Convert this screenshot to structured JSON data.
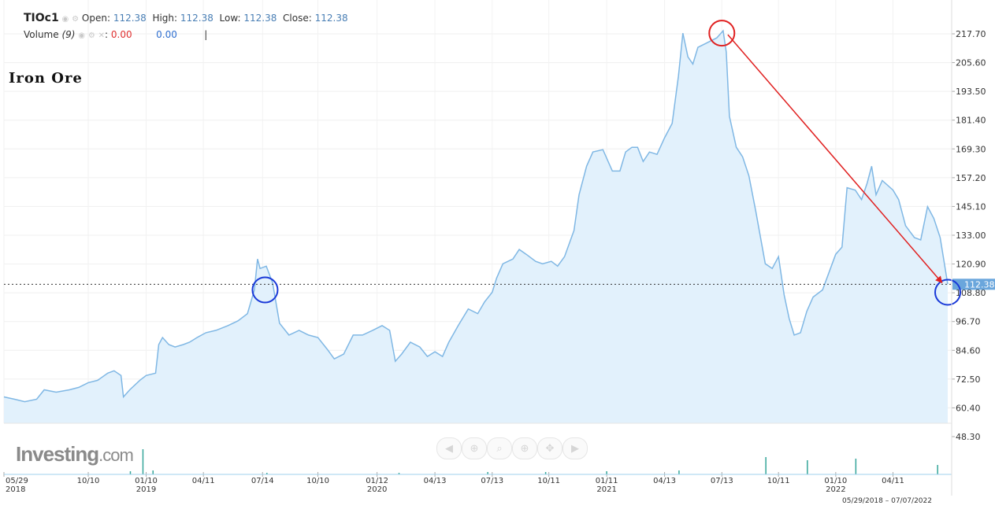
{
  "header": {
    "symbol": "TIOc1",
    "open_label": "Open:",
    "open_value": "112.38",
    "high_label": "High:",
    "high_value": "112.38",
    "low_label": "Low:",
    "low_value": "112.38",
    "close_label": "Close:",
    "close_value": "112.38",
    "volume_label": "Volume",
    "volume_period": "(9)",
    "volume_value": "0.00",
    "volume_value2": "0.00",
    "cursor": "|"
  },
  "annotation_title": "Iron Ore",
  "logo": {
    "text": "Investing",
    "suffix": ".com"
  },
  "date_range": "05/29/2018 – 07/07/2022",
  "price_tag": "112.38",
  "icons": {
    "eye": "eye-icon",
    "gear": "gear-icon",
    "close": "close-icon"
  },
  "controls": [
    "arrow-left-icon",
    "zoom-out-icon",
    "zoom-reset-icon",
    "zoom-in-icon",
    "pan-icon",
    "arrow-right-icon"
  ],
  "colors": {
    "line": "#7fb7e4",
    "fill": "#e2f1fc",
    "arrow": "#e02020",
    "circle_red": "#e02020",
    "circle_blue": "#1a3ad8",
    "volume": "#35a69a",
    "price_tag": "#6aa6dc"
  },
  "chart_data": {
    "type": "area",
    "title": "",
    "xlabel": "",
    "ylabel": "",
    "ylim": [
      48.3,
      229.8
    ],
    "x_range": [
      "2018-05-29",
      "2022-07-07"
    ],
    "y_ticks": [
      "217.70",
      "205.60",
      "193.50",
      "181.40",
      "169.30",
      "157.20",
      "145.10",
      "133.00",
      "120.90",
      "108.80",
      "96.70",
      "84.60",
      "72.50",
      "60.40",
      "48.30"
    ],
    "x_ticks": [
      {
        "date": "2018-05-29",
        "label": "05/29",
        "year": "2018"
      },
      {
        "date": "2018-10-10",
        "label": "10/10",
        "year": ""
      },
      {
        "date": "2019-01-10",
        "label": "01/10",
        "year": "2019"
      },
      {
        "date": "2019-04-11",
        "label": "04/11",
        "year": ""
      },
      {
        "date": "2019-07-14",
        "label": "07/14",
        "year": ""
      },
      {
        "date": "2019-10-10",
        "label": "10/10",
        "year": ""
      },
      {
        "date": "2020-01-12",
        "label": "01/12",
        "year": "2020"
      },
      {
        "date": "2020-04-13",
        "label": "04/13",
        "year": ""
      },
      {
        "date": "2020-07-13",
        "label": "07/13",
        "year": ""
      },
      {
        "date": "2020-10-11",
        "label": "10/11",
        "year": ""
      },
      {
        "date": "2021-01-11",
        "label": "01/11",
        "year": "2021"
      },
      {
        "date": "2021-04-13",
        "label": "04/13",
        "year": ""
      },
      {
        "date": "2021-07-13",
        "label": "07/13",
        "year": ""
      },
      {
        "date": "2021-10-11",
        "label": "10/11",
        "year": ""
      },
      {
        "date": "2022-01-10",
        "label": "01/10",
        "year": "2022"
      },
      {
        "date": "2022-04-11",
        "label": "04/11",
        "year": ""
      }
    ],
    "last_value": 112.38,
    "series": [
      {
        "points": [
          [
            "2018-05-29",
            65
          ],
          [
            "2018-06-15",
            64
          ],
          [
            "2018-07-01",
            63
          ],
          [
            "2018-07-20",
            64
          ],
          [
            "2018-08-01",
            68
          ],
          [
            "2018-08-20",
            67
          ],
          [
            "2018-09-10",
            68
          ],
          [
            "2018-09-25",
            69
          ],
          [
            "2018-10-10",
            71
          ],
          [
            "2018-10-25",
            72
          ],
          [
            "2018-11-10",
            75
          ],
          [
            "2018-11-20",
            76
          ],
          [
            "2018-12-01",
            74
          ],
          [
            "2018-12-05",
            65
          ],
          [
            "2018-12-15",
            68
          ],
          [
            "2018-12-31",
            72
          ],
          [
            "2019-01-10",
            74
          ],
          [
            "2019-01-25",
            75
          ],
          [
            "2019-01-30",
            87
          ],
          [
            "2019-02-05",
            90
          ],
          [
            "2019-02-15",
            87
          ],
          [
            "2019-02-25",
            86
          ],
          [
            "2019-03-10",
            87
          ],
          [
            "2019-03-20",
            88
          ],
          [
            "2019-04-01",
            90
          ],
          [
            "2019-04-15",
            92
          ],
          [
            "2019-05-01",
            93
          ],
          [
            "2019-05-20",
            95
          ],
          [
            "2019-06-05",
            97
          ],
          [
            "2019-06-20",
            100
          ],
          [
            "2019-07-01",
            110
          ],
          [
            "2019-07-06",
            123
          ],
          [
            "2019-07-10",
            119
          ],
          [
            "2019-07-20",
            120
          ],
          [
            "2019-07-30",
            113
          ],
          [
            "2019-08-10",
            96
          ],
          [
            "2019-08-25",
            91
          ],
          [
            "2019-09-10",
            93
          ],
          [
            "2019-09-25",
            91
          ],
          [
            "2019-10-10",
            90
          ],
          [
            "2019-10-25",
            85
          ],
          [
            "2019-11-05",
            81
          ],
          [
            "2019-11-20",
            83
          ],
          [
            "2019-12-05",
            91
          ],
          [
            "2019-12-20",
            91
          ],
          [
            "2020-01-05",
            93
          ],
          [
            "2020-01-20",
            95
          ],
          [
            "2020-02-01",
            93
          ],
          [
            "2020-02-10",
            80
          ],
          [
            "2020-02-20",
            83
          ],
          [
            "2020-03-05",
            88
          ],
          [
            "2020-03-20",
            86
          ],
          [
            "2020-04-01",
            82
          ],
          [
            "2020-04-13",
            84
          ],
          [
            "2020-04-25",
            82
          ],
          [
            "2020-05-05",
            88
          ],
          [
            "2020-05-20",
            95
          ],
          [
            "2020-06-05",
            102
          ],
          [
            "2020-06-20",
            100
          ],
          [
            "2020-07-01",
            105
          ],
          [
            "2020-07-13",
            109
          ],
          [
            "2020-07-20",
            115
          ],
          [
            "2020-07-30",
            121
          ],
          [
            "2020-08-15",
            123
          ],
          [
            "2020-08-25",
            127
          ],
          [
            "2020-09-05",
            125
          ],
          [
            "2020-09-20",
            122
          ],
          [
            "2020-10-01",
            121
          ],
          [
            "2020-10-15",
            122
          ],
          [
            "2020-10-25",
            120
          ],
          [
            "2020-11-05",
            124
          ],
          [
            "2020-11-20",
            135
          ],
          [
            "2020-11-28",
            150
          ],
          [
            "2020-12-10",
            162
          ],
          [
            "2020-12-20",
            168
          ],
          [
            "2021-01-05",
            169
          ],
          [
            "2021-01-20",
            160
          ],
          [
            "2021-02-01",
            160
          ],
          [
            "2021-02-10",
            168
          ],
          [
            "2021-02-20",
            170
          ],
          [
            "2021-03-01",
            170
          ],
          [
            "2021-03-10",
            164
          ],
          [
            "2021-03-20",
            168
          ],
          [
            "2021-04-01",
            167
          ],
          [
            "2021-04-13",
            174
          ],
          [
            "2021-04-25",
            180
          ],
          [
            "2021-05-05",
            200
          ],
          [
            "2021-05-12",
            218
          ],
          [
            "2021-05-20",
            208
          ],
          [
            "2021-05-28",
            205
          ],
          [
            "2021-06-05",
            212
          ],
          [
            "2021-06-20",
            214
          ],
          [
            "2021-07-05",
            216
          ],
          [
            "2021-07-15",
            219
          ],
          [
            "2021-07-20",
            210
          ],
          [
            "2021-07-25",
            183
          ],
          [
            "2021-08-05",
            170
          ],
          [
            "2021-08-15",
            166
          ],
          [
            "2021-08-25",
            158
          ],
          [
            "2021-09-05",
            143
          ],
          [
            "2021-09-20",
            121
          ],
          [
            "2021-10-01",
            119
          ],
          [
            "2021-10-11",
            124
          ],
          [
            "2021-10-20",
            108
          ],
          [
            "2021-10-28",
            98
          ],
          [
            "2021-11-05",
            91
          ],
          [
            "2021-11-15",
            92
          ],
          [
            "2021-11-25",
            101
          ],
          [
            "2021-12-05",
            107
          ],
          [
            "2021-12-20",
            110
          ],
          [
            "2022-01-10",
            125
          ],
          [
            "2022-01-20",
            128
          ],
          [
            "2022-01-28",
            153
          ],
          [
            "2022-02-10",
            152
          ],
          [
            "2022-02-20",
            148
          ],
          [
            "2022-03-01",
            155
          ],
          [
            "2022-03-08",
            162
          ],
          [
            "2022-03-15",
            150
          ],
          [
            "2022-03-25",
            156
          ],
          [
            "2022-04-11",
            152
          ],
          [
            "2022-04-20",
            148
          ],
          [
            "2022-05-01",
            137
          ],
          [
            "2022-05-15",
            132
          ],
          [
            "2022-05-25",
            131
          ],
          [
            "2022-06-05",
            145
          ],
          [
            "2022-06-15",
            140
          ],
          [
            "2022-06-25",
            132
          ],
          [
            "2022-07-07",
            112.38
          ]
        ]
      }
    ],
    "volume_bars": [
      {
        "date": "2018-12-15",
        "value": 4
      },
      {
        "date": "2019-01-04",
        "value": 32
      },
      {
        "date": "2019-01-20",
        "value": 5
      },
      {
        "date": "2019-07-20",
        "value": 2
      },
      {
        "date": "2020-02-15",
        "value": 2
      },
      {
        "date": "2020-07-05",
        "value": 3
      },
      {
        "date": "2020-10-05",
        "value": 3
      },
      {
        "date": "2021-01-10",
        "value": 4
      },
      {
        "date": "2021-05-05",
        "value": 5
      },
      {
        "date": "2021-09-20",
        "value": 22
      },
      {
        "date": "2021-11-25",
        "value": 18
      },
      {
        "date": "2022-02-10",
        "value": 20
      },
      {
        "date": "2022-06-20",
        "value": 12
      }
    ],
    "markers": [
      {
        "type": "circle",
        "date": "2019-07-18",
        "value": 110,
        "color": "red_blue",
        "style": "blue"
      },
      {
        "type": "circle",
        "date": "2021-07-13",
        "value": 218,
        "style": "red"
      },
      {
        "type": "circle",
        "date": "2022-07-07",
        "value": 109,
        "style": "blue"
      },
      {
        "type": "arrow",
        "from_date": "2021-07-15",
        "from_value": 218,
        "to_date": "2022-07-03",
        "to_value": 111
      }
    ]
  }
}
